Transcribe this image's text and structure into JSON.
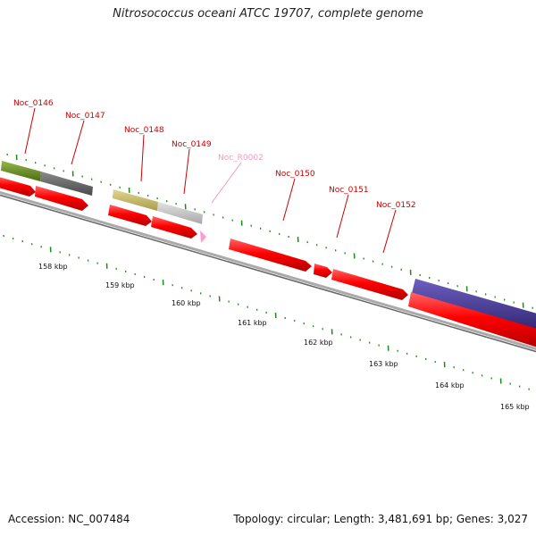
{
  "title": "Nitrosococcus oceani ATCC 19707, complete genome",
  "footer": {
    "accession": "Accession: NC_007484",
    "summary": "Topology: circular; Length: 3,481,691 bp; Genes: 3,027"
  },
  "scale_labels": [
    "158 kbp",
    "159 kbp",
    "160 kbp",
    "161 kbp",
    "162 kbp",
    "163 kbp",
    "164 kbp",
    "165 kbp"
  ],
  "gene_labels": [
    {
      "id": "Noc_0146",
      "color": "#cc0000"
    },
    {
      "id": "Noc_0147",
      "color": "#cc0000"
    },
    {
      "id": "Noc_0148",
      "color": "#cc0000"
    },
    {
      "id": "Noc_0149",
      "color": "#cc0000"
    },
    {
      "id": "Noc_R0002",
      "color": "#f29ac2"
    },
    {
      "id": "Noc_0150",
      "color": "#cc0000"
    },
    {
      "id": "Noc_0151",
      "color": "#cc0000"
    },
    {
      "id": "Noc_0152",
      "color": "#cc0000"
    }
  ],
  "colors": {
    "cds": "#ff0000",
    "rna": "#ffaacc",
    "backbone": "#888888",
    "tick": "#1a8a1a",
    "label_red": "#cc0000",
    "cog_green": "#6b8e23",
    "cog_gray": "#666666",
    "cog_khaki": "#c8bb6a",
    "cog_lightgray": "#c8c8c8",
    "cog_purple": "#4b3c9a"
  }
}
